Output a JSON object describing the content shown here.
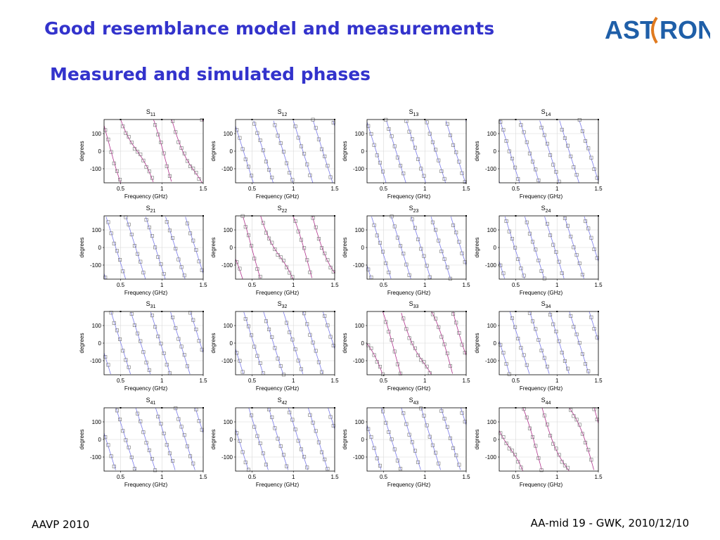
{
  "slide": {
    "title": "Good resemblance model and measurements",
    "subtitle": "Measured and simulated phases",
    "logo_text": "ASTRON",
    "footer_left": "AAVP 2010",
    "footer_right": "AA-mid 19 - GWK, 2010/12/10"
  },
  "colors": {
    "title": "#3333cc",
    "logo": "#1f5fa8",
    "logo_bracket": "#e07a1f",
    "measured_markers": "#707070",
    "simulated_curve_transmission": "#7b7bea",
    "simulated_curve_reflection": "#b0308c",
    "grid": "#d8d8d8"
  },
  "chart_data": {
    "type": "line",
    "layout": "4x4 small multiples",
    "xlabel": "Frequency (GHz)",
    "ylabel": "degrees",
    "xticks": [
      "0.5",
      "1",
      "1.5"
    ],
    "yticks": [
      "100",
      "0",
      "-100"
    ],
    "xlim": [
      0.3,
      1.5
    ],
    "ylim": [
      -180,
      180
    ],
    "series_legend": [
      "measured (square markers)",
      "simulated (solid line)"
    ],
    "panels": [
      {
        "name": "S",
        "sub": "11",
        "kind": "reflection"
      },
      {
        "name": "S",
        "sub": "12",
        "kind": "transmission"
      },
      {
        "name": "S",
        "sub": "13",
        "kind": "transmission"
      },
      {
        "name": "S",
        "sub": "14",
        "kind": "transmission"
      },
      {
        "name": "S",
        "sub": "21",
        "kind": "transmission"
      },
      {
        "name": "S",
        "sub": "22",
        "kind": "reflection"
      },
      {
        "name": "S",
        "sub": "23",
        "kind": "transmission"
      },
      {
        "name": "S",
        "sub": "24",
        "kind": "transmission"
      },
      {
        "name": "S",
        "sub": "31",
        "kind": "transmission"
      },
      {
        "name": "S",
        "sub": "32",
        "kind": "transmission"
      },
      {
        "name": "S",
        "sub": "33",
        "kind": "reflection"
      },
      {
        "name": "S",
        "sub": "34",
        "kind": "transmission"
      },
      {
        "name": "S",
        "sub": "41",
        "kind": "transmission"
      },
      {
        "name": "S",
        "sub": "42",
        "kind": "transmission"
      },
      {
        "name": "S",
        "sub": "43",
        "kind": "transmission"
      },
      {
        "name": "S",
        "sub": "44",
        "kind": "reflection"
      }
    ]
  }
}
